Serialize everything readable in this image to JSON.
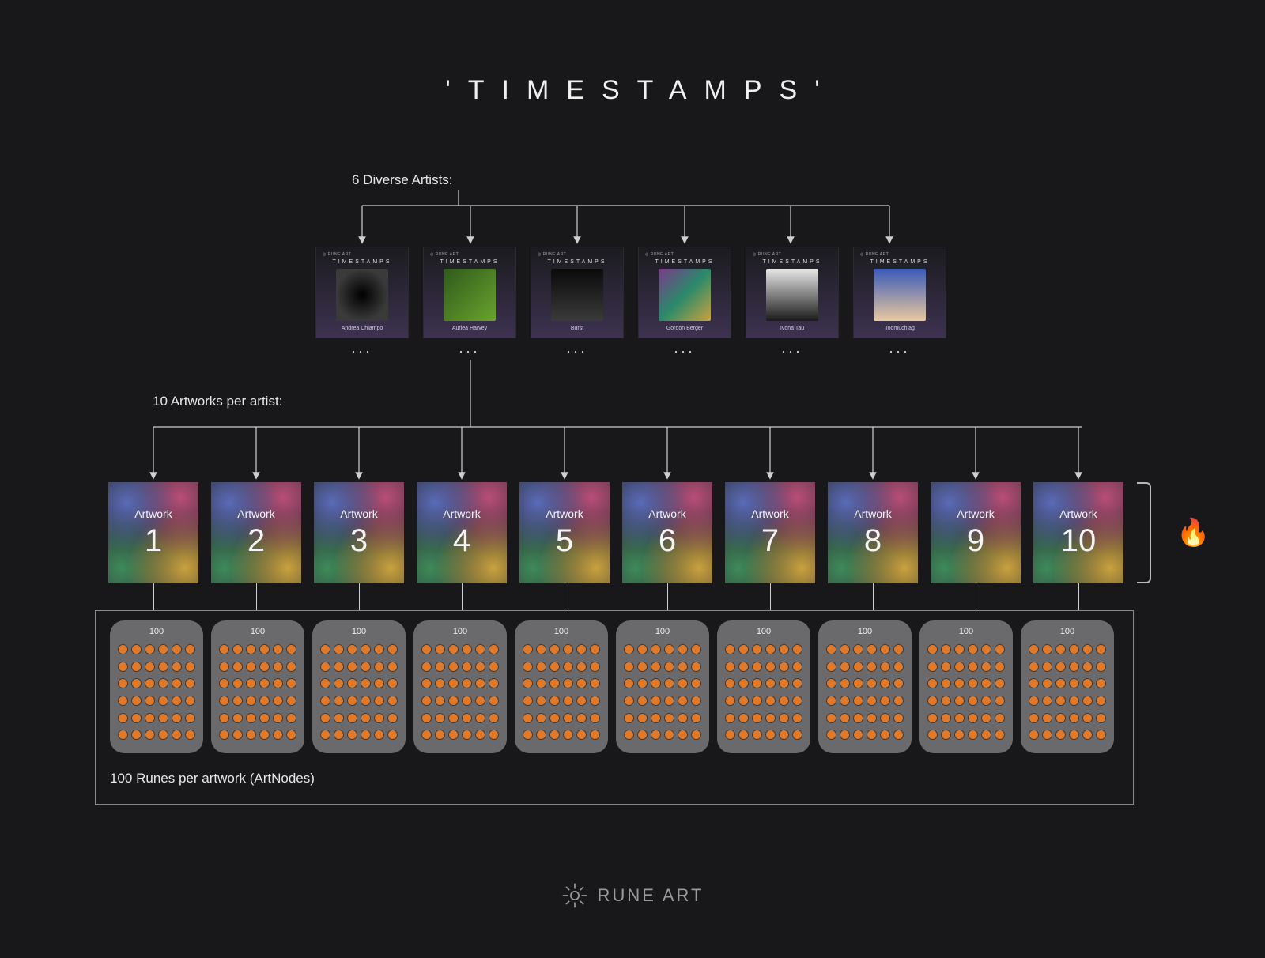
{
  "title": "'TIMESTAMPS'",
  "colors": {
    "background": "#18181a",
    "text": "#e8e8e8",
    "line": "#cfcfcf",
    "pod_bg": "#6a6a6d",
    "rune_dot": "#e07a2a",
    "outline": "#8a8a8a"
  },
  "sections": {
    "artists": {
      "label": "6 Diverse Artists:",
      "card_header_brand": "◎ RUNE.ART",
      "card_header_title": "TIMESTAMPS",
      "ellipsis": "...",
      "items": [
        {
          "name": "Andrea Chiampo",
          "thumb_bg": "radial-gradient(circle at 50% 50%, #000 0%, #3a3a3a 70%)"
        },
        {
          "name": "Auriea Harvey",
          "thumb_bg": "linear-gradient(135deg,#2e5a1a,#6aa32e)"
        },
        {
          "name": "Burst",
          "thumb_bg": "linear-gradient(180deg,#0a0a0a,#3a3a3a)"
        },
        {
          "name": "Gordon Berger",
          "thumb_bg": "linear-gradient(135deg,#7a3a8a,#2a8a6a,#c9a23e)"
        },
        {
          "name": "Ivona Tau",
          "thumb_bg": "linear-gradient(180deg,#e8e8e8,#1a1a1a)"
        },
        {
          "name": "Toomuchlag",
          "thumb_bg": "linear-gradient(180deg,#3a5ab8,#e8c8a0)"
        }
      ]
    },
    "artworks": {
      "label": "10 Artworks per artist:",
      "item_label": "Artwork",
      "count": 10,
      "fire_icon": "🔥"
    },
    "runes": {
      "per_artwork_label": "100",
      "caption": "100 Runes per artwork (ArtNodes)",
      "pods": 10,
      "grid_cols": 6,
      "grid_rows": 6
    }
  },
  "footer": {
    "brand": "RUNE ART"
  }
}
